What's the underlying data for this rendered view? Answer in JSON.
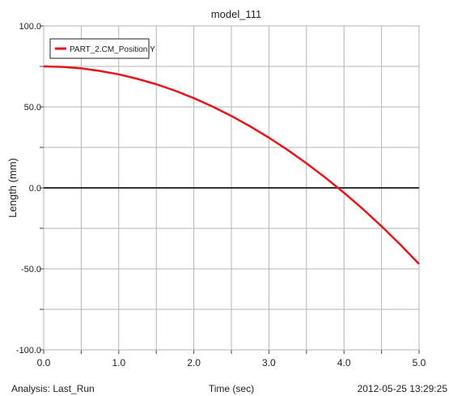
{
  "chart_data": {
    "type": "line",
    "title": "model_111",
    "xlabel": "Time (sec)",
    "ylabel": "Length (mm)",
    "xlim": [
      0.0,
      5.0
    ],
    "ylim": [
      -100.0,
      100.0
    ],
    "x_ticks": [
      0.0,
      0.5,
      1.0,
      1.5,
      2.0,
      2.5,
      3.0,
      3.5,
      4.0,
      4.5,
      5.0
    ],
    "x_tick_labels": [
      "0.0",
      "1.0",
      "2.0",
      "3.0",
      "4.0",
      "5.0"
    ],
    "y_ticks": [
      100.0,
      75.0,
      50.0,
      25.0,
      0.0,
      -25.0,
      -50.0,
      -75.0,
      -100.0
    ],
    "y_tick_labels": [
      "100.0",
      "50.0",
      "0.0",
      "-50.0",
      "-100.0"
    ],
    "grid": true,
    "legend_position": "top-left",
    "series": [
      {
        "name": "PART_2.CM_Position.Y",
        "color": "#e8141b",
        "x": [
          0.0,
          0.25,
          0.5,
          0.75,
          1.0,
          1.25,
          1.5,
          1.75,
          2.0,
          2.25,
          2.5,
          2.75,
          3.0,
          3.25,
          3.5,
          3.75,
          4.0,
          4.25,
          4.5,
          4.75,
          5.0
        ],
        "y": [
          75.0,
          74.7,
          73.8,
          72.2,
          70.1,
          67.3,
          64.0,
          60.0,
          55.4,
          50.2,
          44.4,
          38.0,
          31.0,
          23.4,
          15.2,
          6.4,
          -3.0,
          -13.0,
          -23.7,
          -35.0,
          -47.0
        ]
      }
    ],
    "zero_line": 0.0
  },
  "footer": {
    "analysis": "Analysis:  Last_Run",
    "timestamp": "2012-05-25 13:29:25"
  }
}
